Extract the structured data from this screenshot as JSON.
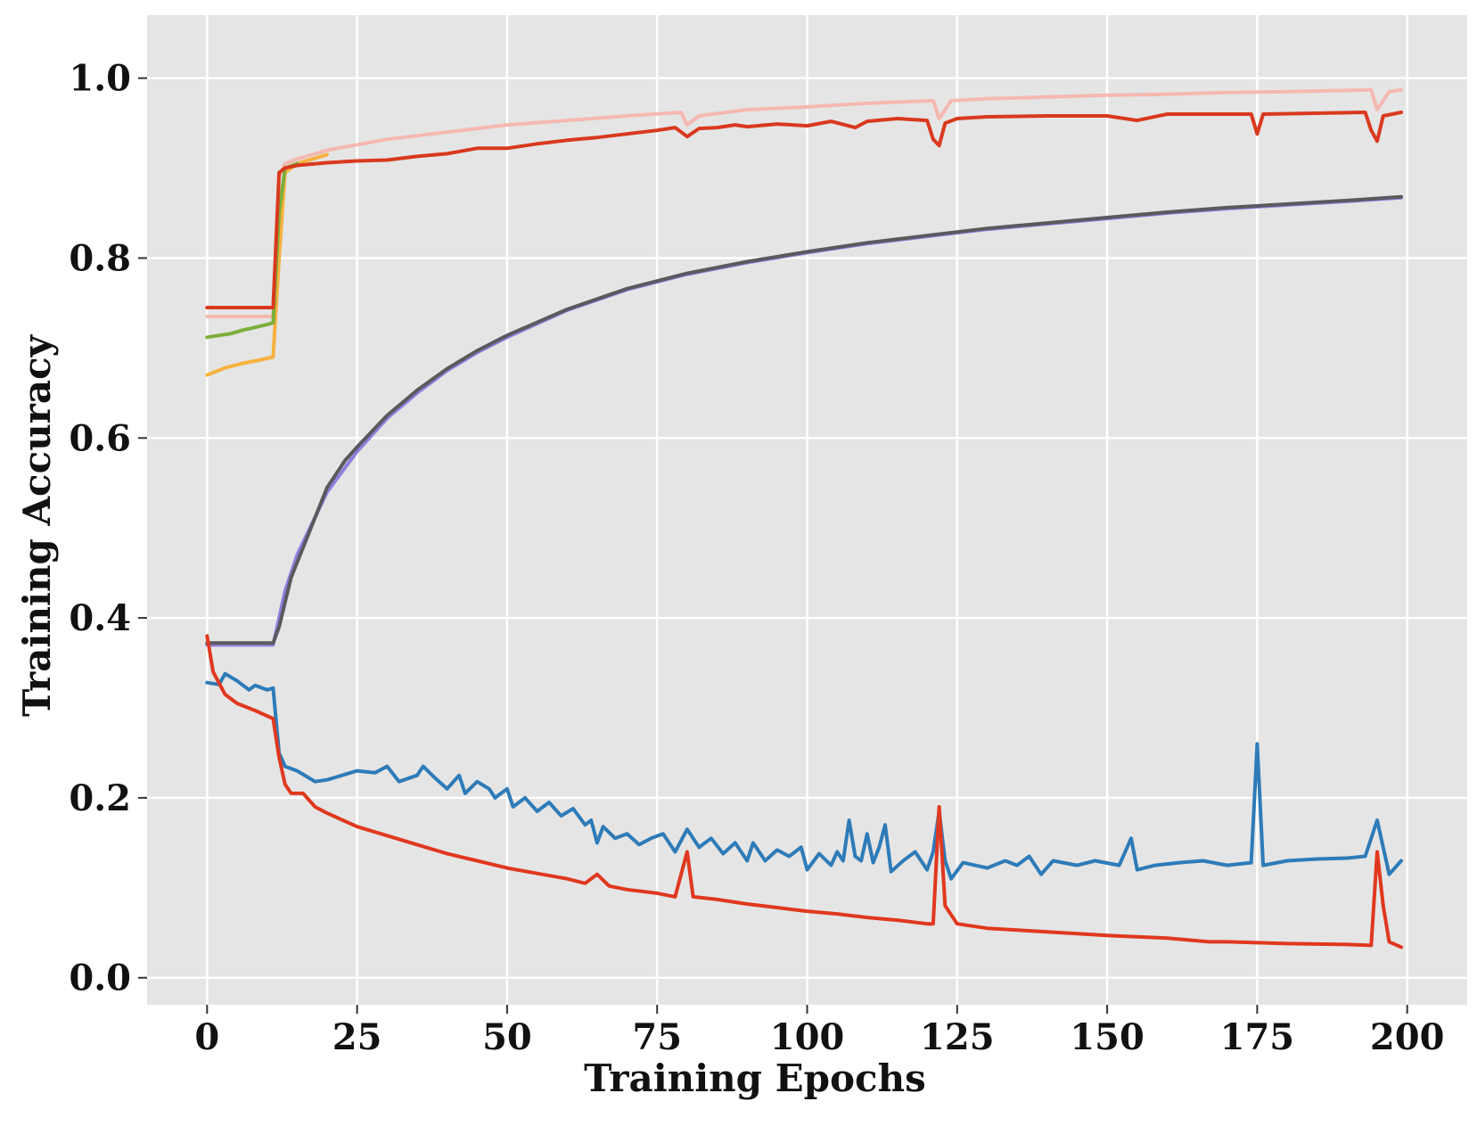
{
  "chart_data": {
    "type": "line",
    "title": "",
    "xlabel": "Training Epochs",
    "ylabel": "Training Accuracy",
    "xlim": [
      -10,
      210
    ],
    "ylim": [
      -0.03,
      1.07
    ],
    "xticks": [
      0,
      25,
      50,
      75,
      100,
      125,
      150,
      175,
      200
    ],
    "yticks": [
      0.0,
      0.2,
      0.4,
      0.6,
      0.8,
      1.0
    ],
    "xtick_labels": [
      "0",
      "25",
      "50",
      "75",
      "100",
      "125",
      "150",
      "175",
      "200"
    ],
    "ytick_labels": [
      "0.0",
      "0.2",
      "0.4",
      "0.6",
      "0.8",
      "1.0"
    ],
    "grid": true,
    "background": "#e5e5e5",
    "gridColor": "#ffffff",
    "series": [
      {
        "color": "#f5b8b0",
        "points": [
          [
            0,
            0.735
          ],
          [
            11,
            0.735
          ],
          [
            12,
            0.89
          ],
          [
            13,
            0.905
          ],
          [
            15,
            0.91
          ],
          [
            20,
            0.92
          ],
          [
            30,
            0.932
          ],
          [
            40,
            0.94
          ],
          [
            50,
            0.948
          ],
          [
            60,
            0.953
          ],
          [
            70,
            0.958
          ],
          [
            79,
            0.962
          ],
          [
            80,
            0.948
          ],
          [
            82,
            0.958
          ],
          [
            90,
            0.965
          ],
          [
            100,
            0.968
          ],
          [
            110,
            0.972
          ],
          [
            121,
            0.975
          ],
          [
            122,
            0.955
          ],
          [
            124,
            0.975
          ],
          [
            130,
            0.977
          ],
          [
            140,
            0.979
          ],
          [
            150,
            0.981
          ],
          [
            160,
            0.982
          ],
          [
            170,
            0.984
          ],
          [
            180,
            0.985
          ],
          [
            194,
            0.987
          ],
          [
            195,
            0.965
          ],
          [
            197,
            0.985
          ],
          [
            199,
            0.987
          ]
        ]
      },
      {
        "color": "#f7b23e",
        "points": [
          [
            0,
            0.67
          ],
          [
            3,
            0.678
          ],
          [
            6,
            0.683
          ],
          [
            9,
            0.687
          ],
          [
            11,
            0.69
          ],
          [
            12,
            0.8
          ],
          [
            13,
            0.895
          ],
          [
            15,
            0.905
          ],
          [
            20,
            0.915
          ]
        ]
      },
      {
        "color": "#7cae3a",
        "points": [
          [
            0,
            0.712
          ],
          [
            2,
            0.714
          ],
          [
            4,
            0.716
          ],
          [
            6,
            0.72
          ],
          [
            8,
            0.723
          ],
          [
            10,
            0.726
          ],
          [
            11,
            0.728
          ],
          [
            12,
            0.85
          ],
          [
            13,
            0.9
          ],
          [
            15,
            0.905
          ]
        ]
      },
      {
        "color": "#d9391e",
        "points": [
          [
            0,
            0.745
          ],
          [
            11,
            0.745
          ],
          [
            12,
            0.895
          ],
          [
            13,
            0.9
          ],
          [
            15,
            0.903
          ],
          [
            20,
            0.906
          ],
          [
            25,
            0.908
          ],
          [
            30,
            0.909
          ],
          [
            35,
            0.913
          ],
          [
            40,
            0.916
          ],
          [
            45,
            0.922
          ],
          [
            50,
            0.922
          ],
          [
            55,
            0.927
          ],
          [
            60,
            0.931
          ],
          [
            65,
            0.934
          ],
          [
            70,
            0.938
          ],
          [
            75,
            0.942
          ],
          [
            78,
            0.945
          ],
          [
            80,
            0.935
          ],
          [
            82,
            0.944
          ],
          [
            85,
            0.945
          ],
          [
            88,
            0.948
          ],
          [
            90,
            0.946
          ],
          [
            95,
            0.949
          ],
          [
            100,
            0.947
          ],
          [
            104,
            0.952
          ],
          [
            108,
            0.945
          ],
          [
            110,
            0.952
          ],
          [
            115,
            0.955
          ],
          [
            120,
            0.953
          ],
          [
            121,
            0.932
          ],
          [
            122,
            0.925
          ],
          [
            123,
            0.95
          ],
          [
            125,
            0.955
          ],
          [
            130,
            0.957
          ],
          [
            140,
            0.958
          ],
          [
            150,
            0.958
          ],
          [
            155,
            0.953
          ],
          [
            160,
            0.96
          ],
          [
            170,
            0.96
          ],
          [
            174,
            0.96
          ],
          [
            175,
            0.938
          ],
          [
            176,
            0.96
          ],
          [
            185,
            0.961
          ],
          [
            193,
            0.962
          ],
          [
            194,
            0.942
          ],
          [
            195,
            0.93
          ],
          [
            196,
            0.958
          ],
          [
            199,
            0.962
          ]
        ]
      },
      {
        "color": "#8f7fe0",
        "points": [
          [
            0,
            0.37
          ],
          [
            11,
            0.37
          ],
          [
            13,
            0.43
          ],
          [
            15,
            0.47
          ],
          [
            20,
            0.54
          ],
          [
            25,
            0.585
          ],
          [
            30,
            0.622
          ],
          [
            35,
            0.65
          ],
          [
            40,
            0.675
          ],
          [
            45,
            0.695
          ],
          [
            50,
            0.712
          ],
          [
            60,
            0.742
          ],
          [
            70,
            0.765
          ],
          [
            80,
            0.782
          ],
          [
            90,
            0.795
          ],
          [
            100,
            0.806
          ],
          [
            110,
            0.816
          ],
          [
            120,
            0.824
          ],
          [
            130,
            0.832
          ],
          [
            140,
            0.838
          ],
          [
            150,
            0.844
          ],
          [
            160,
            0.85
          ],
          [
            170,
            0.855
          ],
          [
            180,
            0.859
          ],
          [
            190,
            0.863
          ],
          [
            199,
            0.867
          ]
        ]
      },
      {
        "color": "#5a5a5e",
        "points": [
          [
            0,
            0.372
          ],
          [
            11,
            0.372
          ],
          [
            12,
            0.39
          ],
          [
            14,
            0.445
          ],
          [
            17,
            0.495
          ],
          [
            20,
            0.545
          ],
          [
            23,
            0.575
          ],
          [
            25,
            0.59
          ],
          [
            30,
            0.625
          ],
          [
            35,
            0.653
          ],
          [
            40,
            0.677
          ],
          [
            45,
            0.697
          ],
          [
            50,
            0.714
          ],
          [
            60,
            0.743
          ],
          [
            70,
            0.766
          ],
          [
            80,
            0.783
          ],
          [
            90,
            0.796
          ],
          [
            100,
            0.807
          ],
          [
            110,
            0.817
          ],
          [
            120,
            0.825
          ],
          [
            130,
            0.833
          ],
          [
            140,
            0.839
          ],
          [
            150,
            0.845
          ],
          [
            160,
            0.851
          ],
          [
            170,
            0.856
          ],
          [
            180,
            0.86
          ],
          [
            190,
            0.864
          ],
          [
            199,
            0.868
          ]
        ]
      },
      {
        "color": "#2e7bb8",
        "points": [
          [
            0,
            0.328
          ],
          [
            2,
            0.326
          ],
          [
            3,
            0.338
          ],
          [
            5,
            0.33
          ],
          [
            7,
            0.32
          ],
          [
            8,
            0.325
          ],
          [
            10,
            0.32
          ],
          [
            11,
            0.322
          ],
          [
            12,
            0.25
          ],
          [
            13,
            0.235
          ],
          [
            15,
            0.23
          ],
          [
            18,
            0.218
          ],
          [
            20,
            0.22
          ],
          [
            25,
            0.23
          ],
          [
            28,
            0.228
          ],
          [
            30,
            0.235
          ],
          [
            32,
            0.218
          ],
          [
            35,
            0.225
          ],
          [
            36,
            0.235
          ],
          [
            38,
            0.222
          ],
          [
            40,
            0.21
          ],
          [
            42,
            0.225
          ],
          [
            43,
            0.205
          ],
          [
            45,
            0.218
          ],
          [
            47,
            0.21
          ],
          [
            48,
            0.2
          ],
          [
            50,
            0.21
          ],
          [
            51,
            0.19
          ],
          [
            53,
            0.2
          ],
          [
            55,
            0.185
          ],
          [
            57,
            0.195
          ],
          [
            59,
            0.18
          ],
          [
            61,
            0.188
          ],
          [
            63,
            0.17
          ],
          [
            64,
            0.175
          ],
          [
            65,
            0.15
          ],
          [
            66,
            0.168
          ],
          [
            68,
            0.155
          ],
          [
            70,
            0.16
          ],
          [
            72,
            0.148
          ],
          [
            74,
            0.155
          ],
          [
            76,
            0.16
          ],
          [
            78,
            0.14
          ],
          [
            80,
            0.165
          ],
          [
            82,
            0.145
          ],
          [
            84,
            0.155
          ],
          [
            86,
            0.138
          ],
          [
            88,
            0.15
          ],
          [
            90,
            0.13
          ],
          [
            91,
            0.15
          ],
          [
            93,
            0.13
          ],
          [
            95,
            0.142
          ],
          [
            97,
            0.135
          ],
          [
            99,
            0.145
          ],
          [
            100,
            0.12
          ],
          [
            102,
            0.138
          ],
          [
            104,
            0.125
          ],
          [
            105,
            0.14
          ],
          [
            106,
            0.13
          ],
          [
            107,
            0.175
          ],
          [
            108,
            0.135
          ],
          [
            109,
            0.13
          ],
          [
            110,
            0.16
          ],
          [
            111,
            0.128
          ],
          [
            112,
            0.145
          ],
          [
            113,
            0.17
          ],
          [
            114,
            0.118
          ],
          [
            116,
            0.13
          ],
          [
            118,
            0.14
          ],
          [
            120,
            0.12
          ],
          [
            121,
            0.14
          ],
          [
            122,
            0.185
          ],
          [
            123,
            0.13
          ],
          [
            124,
            0.11
          ],
          [
            126,
            0.128
          ],
          [
            130,
            0.122
          ],
          [
            133,
            0.13
          ],
          [
            135,
            0.125
          ],
          [
            137,
            0.135
          ],
          [
            139,
            0.115
          ],
          [
            141,
            0.13
          ],
          [
            145,
            0.125
          ],
          [
            148,
            0.13
          ],
          [
            152,
            0.125
          ],
          [
            154,
            0.155
          ],
          [
            155,
            0.12
          ],
          [
            158,
            0.125
          ],
          [
            162,
            0.128
          ],
          [
            166,
            0.13
          ],
          [
            170,
            0.125
          ],
          [
            174,
            0.128
          ],
          [
            175,
            0.26
          ],
          [
            176,
            0.125
          ],
          [
            180,
            0.13
          ],
          [
            185,
            0.132
          ],
          [
            190,
            0.133
          ],
          [
            193,
            0.135
          ],
          [
            195,
            0.175
          ],
          [
            197,
            0.115
          ],
          [
            199,
            0.13
          ]
        ]
      },
      {
        "color": "#e0381f",
        "points": [
          [
            0,
            0.38
          ],
          [
            1,
            0.34
          ],
          [
            3,
            0.315
          ],
          [
            5,
            0.305
          ],
          [
            8,
            0.297
          ],
          [
            11,
            0.288
          ],
          [
            12,
            0.245
          ],
          [
            13,
            0.215
          ],
          [
            14,
            0.205
          ],
          [
            16,
            0.205
          ],
          [
            18,
            0.19
          ],
          [
            20,
            0.183
          ],
          [
            25,
            0.168
          ],
          [
            30,
            0.158
          ],
          [
            35,
            0.148
          ],
          [
            40,
            0.138
          ],
          [
            45,
            0.13
          ],
          [
            50,
            0.122
          ],
          [
            55,
            0.116
          ],
          [
            60,
            0.11
          ],
          [
            63,
            0.105
          ],
          [
            65,
            0.115
          ],
          [
            67,
            0.102
          ],
          [
            70,
            0.098
          ],
          [
            75,
            0.094
          ],
          [
            78,
            0.09
          ],
          [
            79,
            0.115
          ],
          [
            80,
            0.14
          ],
          [
            81,
            0.09
          ],
          [
            85,
            0.087
          ],
          [
            90,
            0.082
          ],
          [
            95,
            0.078
          ],
          [
            100,
            0.074
          ],
          [
            105,
            0.071
          ],
          [
            110,
            0.067
          ],
          [
            115,
            0.064
          ],
          [
            120,
            0.06
          ],
          [
            121,
            0.06
          ],
          [
            122,
            0.19
          ],
          [
            123,
            0.08
          ],
          [
            125,
            0.06
          ],
          [
            130,
            0.055
          ],
          [
            140,
            0.051
          ],
          [
            150,
            0.047
          ],
          [
            160,
            0.044
          ],
          [
            167,
            0.04
          ],
          [
            170,
            0.04
          ],
          [
            175,
            0.039
          ],
          [
            180,
            0.038
          ],
          [
            190,
            0.037
          ],
          [
            194,
            0.036
          ],
          [
            195,
            0.14
          ],
          [
            196,
            0.08
          ],
          [
            197,
            0.04
          ],
          [
            199,
            0.034
          ]
        ]
      }
    ]
  }
}
